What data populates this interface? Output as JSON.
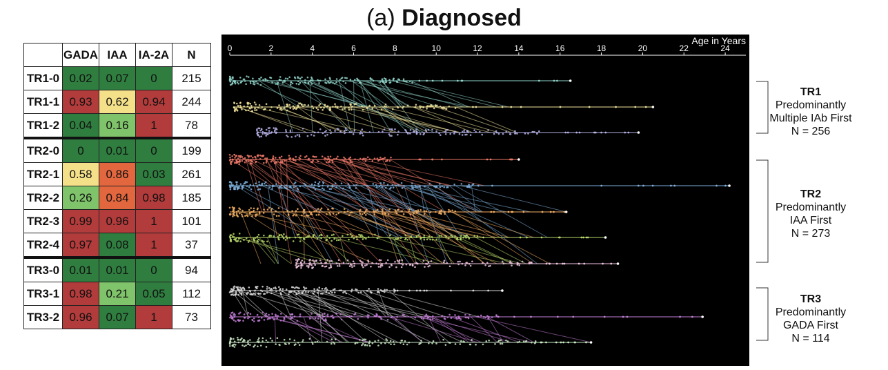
{
  "title": {
    "prefix": "(a) ",
    "bold": "Diagnosed"
  },
  "colors": {
    "high": "#b23b3b",
    "midhigh": "#e2663e",
    "mid": "#f5e08a",
    "midlow": "#7fc46a",
    "low": "#2f7d3f",
    "background": "#000000"
  },
  "chart_data": [
    {
      "type": "table",
      "columns": [
        "",
        "GADA",
        "IAA",
        "IA-2A",
        "N"
      ],
      "rows": [
        {
          "label": "TR1-0",
          "values": [
            0.02,
            0.07,
            0
          ],
          "n": 215
        },
        {
          "label": "TR1-1",
          "values": [
            0.93,
            0.62,
            0.94
          ],
          "n": 244
        },
        {
          "label": "TR1-2",
          "values": [
            0.04,
            0.16,
            1
          ],
          "n": 78
        },
        {
          "label": "TR2-0",
          "values": [
            0,
            0.01,
            0
          ],
          "n": 199
        },
        {
          "label": "TR2-1",
          "values": [
            0.58,
            0.86,
            0.03
          ],
          "n": 261
        },
        {
          "label": "TR2-2",
          "values": [
            0.26,
            0.84,
            0.98
          ],
          "n": 185
        },
        {
          "label": "TR2-3",
          "values": [
            0.99,
            0.96,
            1
          ],
          "n": 101
        },
        {
          "label": "TR2-4",
          "values": [
            0.97,
            0.08,
            1
          ],
          "n": 37
        },
        {
          "label": "TR3-0",
          "values": [
            0.01,
            0.01,
            0
          ],
          "n": 94
        },
        {
          "label": "TR3-1",
          "values": [
            0.98,
            0.21,
            0.05
          ],
          "n": 112
        },
        {
          "label": "TR3-2",
          "values": [
            0.96,
            0.07,
            1
          ],
          "n": 73
        }
      ],
      "cell_colors": [
        [
          "low",
          "low",
          "low"
        ],
        [
          "high",
          "mid",
          "high"
        ],
        [
          "low",
          "midlow",
          "high"
        ],
        [
          "low",
          "low",
          "low"
        ],
        [
          "mid",
          "midhigh",
          "low"
        ],
        [
          "midlow",
          "midhigh",
          "high"
        ],
        [
          "high",
          "high",
          "high"
        ],
        [
          "high",
          "low",
          "high"
        ],
        [
          "low",
          "low",
          "low"
        ],
        [
          "high",
          "midlow",
          "low"
        ],
        [
          "high",
          "low",
          "high"
        ]
      ],
      "group_separators_before": [
        3,
        8
      ]
    },
    {
      "type": "scatter",
      "xlabel": "Age in Years",
      "xlim": [
        0,
        25
      ],
      "ticks": [
        0,
        2,
        4,
        6,
        8,
        10,
        12,
        14,
        16,
        18,
        20,
        22,
        24
      ],
      "tracks": [
        {
          "label": "TR1-0",
          "color": "#8fd3c9",
          "start": 0,
          "end": 16.5,
          "dense_until": 9
        },
        {
          "label": "TR1-1",
          "color": "#f0e39a",
          "start": 0.2,
          "end": 20.5,
          "dense_until": 11
        },
        {
          "label": "TR1-2",
          "color": "#b5b2e6",
          "start": 1.3,
          "end": 19.8,
          "dense_until": 15
        },
        {
          "label": "TR2-0",
          "color": "#f07a6a",
          "start": 0,
          "end": 14,
          "dense_until": 8
        },
        {
          "label": "TR2-1",
          "color": "#7fb0dc",
          "start": 0,
          "end": 24.2,
          "dense_until": 12
        },
        {
          "label": "TR2-2",
          "color": "#f5b064",
          "start": 0,
          "end": 16.3,
          "dense_until": 11
        },
        {
          "label": "TR2-3",
          "color": "#b8d96a",
          "start": 0,
          "end": 18.2,
          "dense_until": 12
        },
        {
          "label": "TR2-4",
          "color": "#f0c4e0",
          "start": 3.2,
          "end": 18.8,
          "dense_until": 15
        },
        {
          "label": "TR3-0",
          "color": "#d9d9d9",
          "start": 0,
          "end": 13.2,
          "dense_until": 8
        },
        {
          "label": "TR3-1",
          "color": "#c27ed6",
          "start": 0,
          "end": 22.9,
          "dense_until": 13
        },
        {
          "label": "TR3-2",
          "color": "#c9e8c3",
          "start": 0,
          "end": 17.5,
          "dense_until": 15
        }
      ]
    }
  ],
  "groups": [
    {
      "name": "TR1",
      "line1": "Predominantly",
      "line2": "Multiple IAb First",
      "n": "N = 256"
    },
    {
      "name": "TR2",
      "line1": "Predominantly",
      "line2": "IAA First",
      "n": "N = 273"
    },
    {
      "name": "TR3",
      "line1": "Predominantly",
      "line2": "GADA First",
      "n": "N = 114"
    }
  ]
}
